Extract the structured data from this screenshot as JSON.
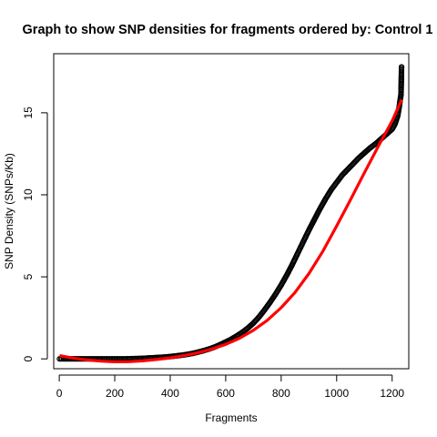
{
  "chart_data": {
    "type": "scatter",
    "title": "Graph to show SNP densities for fragments ordered by: Control 1",
    "xlabel": "Fragments",
    "ylabel": "SNP Density (SNPs/Kb)",
    "xlim": [
      -20,
      1260
    ],
    "ylim": [
      -0.6,
      18.6
    ],
    "x_ticks": [
      0,
      200,
      400,
      600,
      800,
      1000,
      1200
    ],
    "y_ticks": [
      0,
      5,
      10,
      15
    ],
    "grid": false,
    "legend": "none",
    "series": [
      {
        "marker": "open-circle",
        "color": "#000000",
        "x": [
          1,
          10,
          20,
          40,
          60,
          80,
          100,
          120,
          140,
          160,
          180,
          200,
          220,
          240,
          260,
          280,
          300,
          320,
          340,
          360,
          380,
          400,
          420,
          440,
          460,
          480,
          500,
          520,
          540,
          560,
          580,
          600,
          620,
          640,
          660,
          680,
          700,
          720,
          740,
          760,
          780,
          800,
          820,
          840,
          860,
          880,
          900,
          920,
          940,
          960,
          980,
          1000,
          1020,
          1040,
          1060,
          1080,
          1100,
          1120,
          1140,
          1160,
          1180,
          1200,
          1210,
          1220,
          1225,
          1230,
          1232,
          1234
        ],
        "y": [
          0.0,
          0.0,
          0.0,
          0.0,
          0.0,
          0.0,
          0.0,
          0.0,
          0.0,
          0.0,
          0.0,
          0.0,
          0.0,
          0.0,
          0.01,
          0.02,
          0.03,
          0.05,
          0.07,
          0.09,
          0.11,
          0.14,
          0.18,
          0.22,
          0.27,
          0.33,
          0.41,
          0.5,
          0.6,
          0.72,
          0.87,
          1.03,
          1.2,
          1.4,
          1.62,
          1.88,
          2.18,
          2.55,
          2.98,
          3.45,
          3.95,
          4.5,
          5.1,
          5.75,
          6.45,
          7.15,
          7.85,
          8.5,
          9.15,
          9.75,
          10.3,
          10.75,
          11.2,
          11.55,
          11.9,
          12.25,
          12.55,
          12.85,
          13.1,
          13.4,
          13.7,
          14.0,
          14.3,
          14.8,
          15.3,
          15.9,
          16.1,
          17.8
        ]
      },
      {
        "marker": "line",
        "color": "#ff0000",
        "x": [
          1,
          50,
          100,
          150,
          200,
          250,
          300,
          350,
          400,
          450,
          500,
          550,
          600,
          650,
          700,
          750,
          800,
          850,
          900,
          950,
          1000,
          1050,
          1100,
          1150,
          1200,
          1234
        ],
        "y": [
          0.2,
          0.05,
          -0.07,
          -0.14,
          -0.18,
          -0.17,
          -0.12,
          -0.04,
          0.06,
          0.2,
          0.37,
          0.6,
          0.88,
          1.26,
          1.75,
          2.35,
          3.12,
          4.05,
          5.2,
          6.55,
          8.1,
          9.7,
          11.35,
          12.95,
          14.5,
          15.8
        ]
      }
    ]
  }
}
